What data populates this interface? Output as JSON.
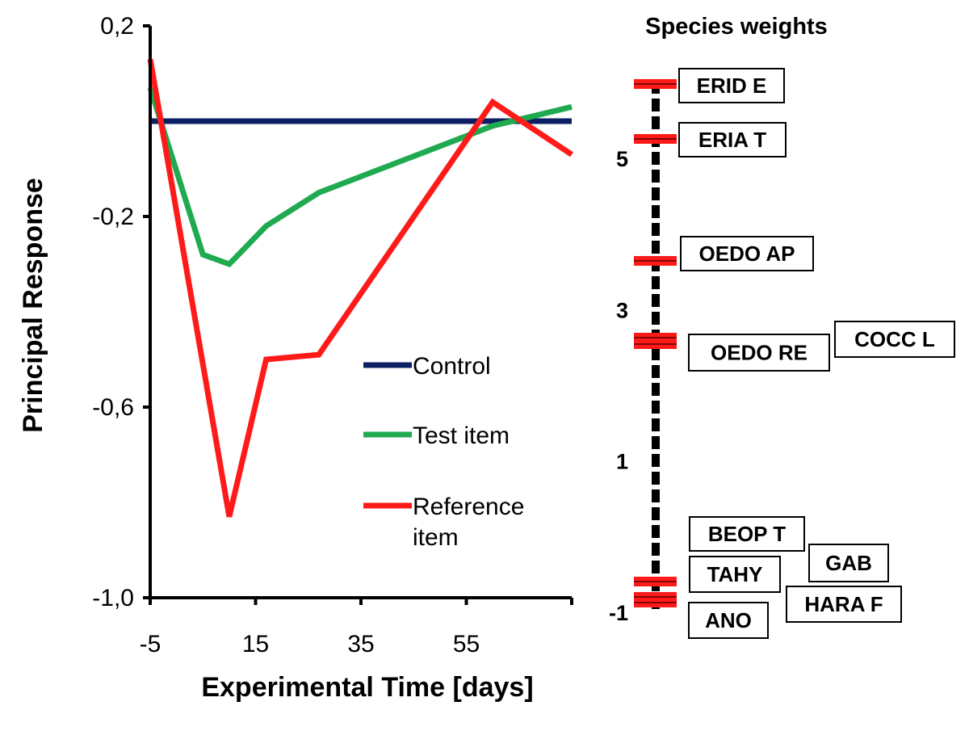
{
  "chart_data": [
    {
      "type": "line",
      "title": "",
      "xlabel": "Experimental Time [days]",
      "ylabel": "Principal Response",
      "xlim": [
        -5,
        75
      ],
      "ylim": [
        -1.0,
        0.2
      ],
      "x_ticks": [
        "-5",
        "15",
        "35",
        "55"
      ],
      "y_ticks": [
        "0,2",
        "-0,2",
        "-0,6",
        "-1,0"
      ],
      "legend_position": "center-right",
      "series": [
        {
          "name": "Control",
          "color": "#0d1f63",
          "x": [
            -5,
            75
          ],
          "y": [
            0.0,
            0.0
          ]
        },
        {
          "name": "Test item",
          "color": "#1faa50",
          "x": [
            -5,
            5,
            10,
            17,
            27,
            60,
            75
          ],
          "y": [
            0.07,
            -0.28,
            -0.3,
            -0.22,
            -0.15,
            -0.01,
            0.03
          ]
        },
        {
          "name": "Reference item",
          "color": "#ff1a1a",
          "x": [
            -5,
            10,
            17,
            27,
            60,
            75
          ],
          "y": [
            0.13,
            -0.83,
            -0.5,
            -0.49,
            0.04,
            -0.07
          ]
        }
      ],
      "legend_lines": [
        [
          "Control"
        ],
        [
          "Test item"
        ],
        [
          "Reference",
          "item"
        ]
      ]
    },
    {
      "type": "scatter",
      "title": "Species weights",
      "ylim": [
        -1,
        6
      ],
      "y_ticks": [
        "5",
        "3",
        "1",
        "-1"
      ],
      "marker_color": "#ff1a1a",
      "species": [
        {
          "name": "ERID E",
          "weight": 6.0
        },
        {
          "name": "ERIA T",
          "weight": 5.3
        },
        {
          "name": "OEDO AP",
          "weight": 3.7
        },
        {
          "name": "OEDO RE",
          "weight": 2.6
        },
        {
          "name": "COCC L",
          "weight": 2.6
        },
        {
          "name": "BEOP T",
          "weight": -0.8
        },
        {
          "name": "TAHY",
          "weight": -0.8
        },
        {
          "name": "GAB",
          "weight": -0.8
        },
        {
          "name": "HARA F",
          "weight": -0.9
        },
        {
          "name": "ANO",
          "weight": -0.9
        }
      ]
    }
  ]
}
